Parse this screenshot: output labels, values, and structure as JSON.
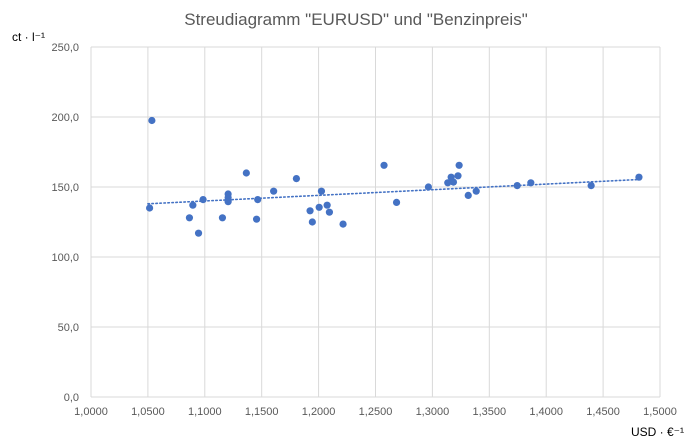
{
  "chart_data": {
    "type": "scatter",
    "title": "Streudiagramm \"EURUSD\" und \"Benzinpreis\"",
    "xlabel": "USD · €⁻¹",
    "ylabel": "ct · l⁻¹",
    "xlim": [
      1.0,
      1.5
    ],
    "ylim": [
      0,
      250
    ],
    "x_ticks": [
      1.0,
      1.05,
      1.1,
      1.15,
      1.2,
      1.25,
      1.3,
      1.35,
      1.4,
      1.45,
      1.5
    ],
    "x_tick_labels": [
      "1,0000",
      "1,0500",
      "1,1000",
      "1,1500",
      "1,2000",
      "1,2500",
      "1,3000",
      "1,3500",
      "1,4000",
      "1,4500",
      "1,5000"
    ],
    "y_ticks": [
      0,
      50,
      100,
      150,
      200,
      250
    ],
    "y_tick_labels": [
      "0,0",
      "50,0",
      "100,0",
      "150,0",
      "200,0",
      "250,0"
    ],
    "grid": "horizontal and vertical",
    "legend": "none",
    "series": [
      {
        "color": "#4472C4",
        "points": [
          [
            1.0515,
            135.0
          ],
          [
            1.0535,
            197.5
          ],
          [
            1.0865,
            128.0
          ],
          [
            1.0895,
            137.0
          ],
          [
            1.0945,
            117.0
          ],
          [
            1.0985,
            141.0
          ],
          [
            1.1155,
            128.0
          ],
          [
            1.1205,
            145.0
          ],
          [
            1.1205,
            142.5
          ],
          [
            1.1205,
            139.5
          ],
          [
            1.1365,
            160.0
          ],
          [
            1.1455,
            127.0
          ],
          [
            1.1465,
            141.0
          ],
          [
            1.1605,
            147.0
          ],
          [
            1.1805,
            156.0
          ],
          [
            1.1925,
            133.0
          ],
          [
            1.1945,
            125.0
          ],
          [
            1.2005,
            135.5
          ],
          [
            1.2025,
            147.0
          ],
          [
            1.2075,
            137.0
          ],
          [
            1.2095,
            132.0
          ],
          [
            1.2215,
            123.5
          ],
          [
            1.2575,
            165.5
          ],
          [
            1.2685,
            139.0
          ],
          [
            1.2965,
            150.0
          ],
          [
            1.3135,
            153.0
          ],
          [
            1.3165,
            157.0
          ],
          [
            1.3185,
            153.5
          ],
          [
            1.3225,
            158.0
          ],
          [
            1.3235,
            165.5
          ],
          [
            1.3315,
            144.0
          ],
          [
            1.3385,
            147.0
          ],
          [
            1.3745,
            151.0
          ],
          [
            1.3865,
            153.0
          ],
          [
            1.4395,
            151.0
          ],
          [
            1.4815,
            157.0
          ]
        ]
      }
    ],
    "trendline": {
      "style": "dotted",
      "color": "#4472C4",
      "x": [
        1.05,
        1.485
      ],
      "y": [
        138.0,
        155.5
      ]
    }
  }
}
